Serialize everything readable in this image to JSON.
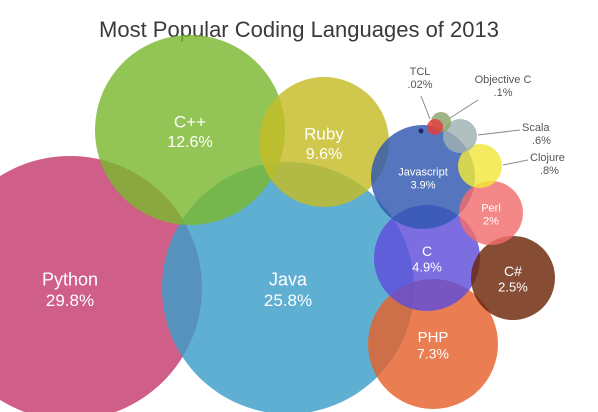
{
  "chart_data": {
    "type": "bubble",
    "title": "Most Popular Coding Languages of 2013",
    "unit": "%",
    "series": [
      {
        "name": "Python",
        "value": 29.8,
        "label": "29.8%",
        "color": "#c53a6e"
      },
      {
        "name": "Java",
        "value": 25.8,
        "label": "25.8%",
        "color": "#3c9ec8"
      },
      {
        "name": "C++",
        "value": 12.6,
        "label": "12.6%",
        "color": "#7ab82f"
      },
      {
        "name": "Ruby",
        "value": 9.6,
        "label": "9.6%",
        "color": "#c5bc26"
      },
      {
        "name": "PHP",
        "value": 7.3,
        "label": "7.3%",
        "color": "#e5622c"
      },
      {
        "name": "C",
        "value": 4.9,
        "label": "4.9%",
        "color": "#5f4dda"
      },
      {
        "name": "Javascript",
        "value": 3.9,
        "label": "3.9%",
        "color": "#2f58b0"
      },
      {
        "name": "C#",
        "value": 2.5,
        "label": "2.5%",
        "color": "#6b2407"
      },
      {
        "name": "Perl",
        "value": 2.0,
        "label": "2%",
        "color": "#f16d6d"
      },
      {
        "name": "Clojure",
        "value": 0.8,
        "label": ".8%",
        "color": "#f2e83a"
      },
      {
        "name": "Scala",
        "value": 0.6,
        "label": ".6%",
        "color": "#9fb1b2"
      },
      {
        "name": "Objective C",
        "value": 0.1,
        "label": ".1%",
        "color": "#8aa46a"
      },
      {
        "name": "TCL",
        "value": 0.02,
        "label": ".02%",
        "color": "#e53c3c"
      }
    ]
  }
}
